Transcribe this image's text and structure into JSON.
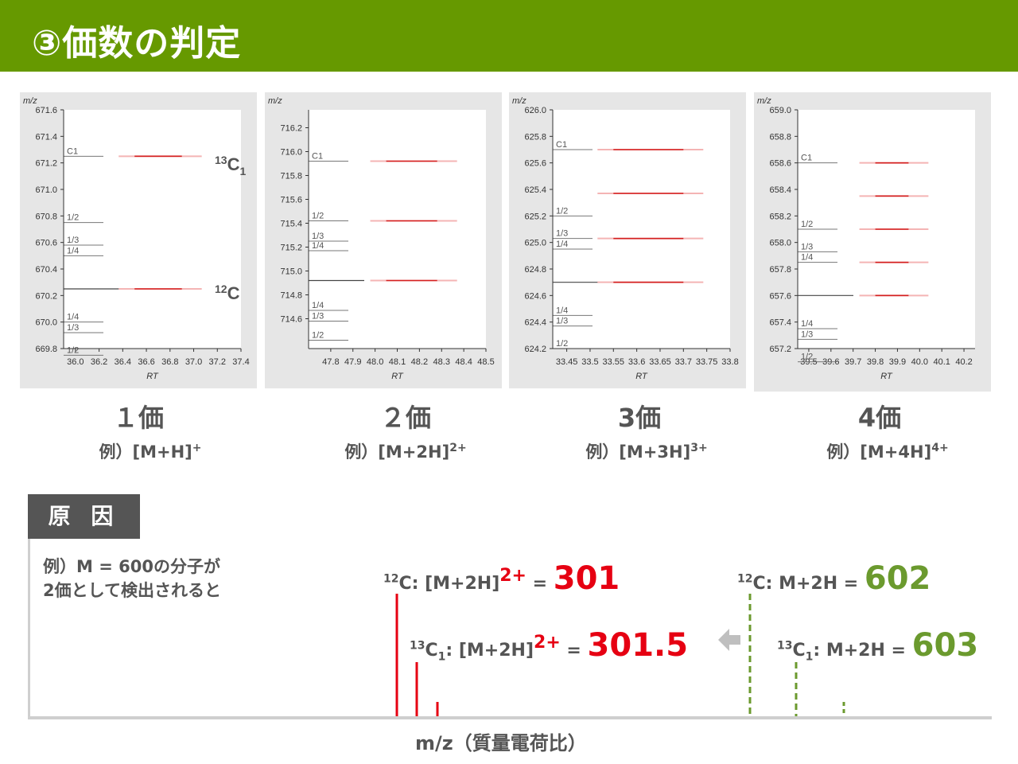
{
  "header": {
    "title": "③価数の判定"
  },
  "colors": {
    "header_bg": "#669900",
    "red": "#e60012",
    "green": "#6b9a2e",
    "gray": "#555555"
  },
  "chart_data": [
    {
      "type": "heatmap",
      "ylabel": "m/z",
      "xlabel": "RT",
      "yticks": [
        "671.6",
        "671.4",
        "671.2",
        "671.0",
        "670.8",
        "670.6",
        "670.4",
        "670.2",
        "670.0",
        "669.8"
      ],
      "xticks": [
        "36.0",
        "36.2",
        "36.4",
        "36.6",
        "36.8",
        "37.0",
        "37.2",
        "37.4"
      ],
      "ylim": [
        669.8,
        671.6
      ],
      "xlim": [
        35.9,
        37.4
      ],
      "markers": [
        {
          "label": "C1",
          "mz": 671.25
        },
        {
          "label": "1/2",
          "mz": 670.75
        },
        {
          "label": "1/3",
          "mz": 670.58
        },
        {
          "label": "1/4",
          "mz": 670.5
        },
        {
          "label": "1/4",
          "mz": 670.0
        },
        {
          "label": "1/3",
          "mz": 669.92
        },
        {
          "label": "1/2",
          "mz": 669.75
        }
      ],
      "mono_mz": 670.25,
      "peaks": [
        {
          "mz": 671.25,
          "rt_start": 36.5,
          "rt_end": 36.9
        },
        {
          "mz": 670.25,
          "rt_start": 36.5,
          "rt_end": 36.9
        }
      ],
      "annotations": {
        "c13": "13",
        "c13_sub": "1",
        "c12": "12",
        "elem": "C"
      },
      "charge_label": "１価",
      "example": "例）[M+H]",
      "example_sup": "+"
    },
    {
      "type": "heatmap",
      "ylabel": "m/z",
      "xlabel": "RT",
      "yticks": [
        "716.2",
        "716.0",
        "715.8",
        "715.6",
        "715.4",
        "715.2",
        "715.0",
        "714.8",
        "714.6"
      ],
      "xticks": [
        "47.8",
        "47.9",
        "48.0",
        "48.1",
        "48.2",
        "48.3",
        "48.4",
        "48.5"
      ],
      "ylim": [
        714.35,
        716.35
      ],
      "xlim": [
        47.7,
        48.5
      ],
      "markers": [
        {
          "label": "C1",
          "mz": 715.92
        },
        {
          "label": "1/2",
          "mz": 715.42
        },
        {
          "label": "1/3",
          "mz": 715.25
        },
        {
          "label": "1/4",
          "mz": 715.17
        },
        {
          "label": "1/4",
          "mz": 714.67
        },
        {
          "label": "1/3",
          "mz": 714.58
        },
        {
          "label": "1/2",
          "mz": 714.42
        }
      ],
      "mono_mz": 714.92,
      "peaks": [
        {
          "mz": 715.92,
          "rt_start": 48.05,
          "rt_end": 48.28
        },
        {
          "mz": 715.42,
          "rt_start": 48.05,
          "rt_end": 48.28
        },
        {
          "mz": 714.92,
          "rt_start": 48.05,
          "rt_end": 48.28
        }
      ],
      "charge_label": "２価",
      "example": "例）[M+2H]",
      "example_sup": "2+"
    },
    {
      "type": "heatmap",
      "ylabel": "m/z",
      "xlabel": "RT",
      "yticks": [
        "626.0",
        "625.8",
        "625.6",
        "625.4",
        "625.2",
        "625.0",
        "624.8",
        "624.6",
        "624.4",
        "624.2"
      ],
      "xticks": [
        "33.45",
        "33.5",
        "33.55",
        "33.6",
        "33.65",
        "33.7",
        "33.75",
        "33.8"
      ],
      "ylim": [
        624.2,
        626.0
      ],
      "xlim": [
        33.42,
        33.8
      ],
      "markers": [
        {
          "label": "C1",
          "mz": 625.7
        },
        {
          "label": "1/2",
          "mz": 625.2
        },
        {
          "label": "1/3",
          "mz": 625.03
        },
        {
          "label": "1/4",
          "mz": 624.95
        },
        {
          "label": "1/4",
          "mz": 624.45
        },
        {
          "label": "1/3",
          "mz": 624.37
        },
        {
          "label": "1/2",
          "mz": 624.2
        }
      ],
      "mono_mz": 624.7,
      "peaks": [
        {
          "mz": 625.7,
          "rt_start": 33.55,
          "rt_end": 33.7
        },
        {
          "mz": 625.37,
          "rt_start": 33.55,
          "rt_end": 33.7
        },
        {
          "mz": 625.03,
          "rt_start": 33.55,
          "rt_end": 33.7
        },
        {
          "mz": 624.7,
          "rt_start": 33.55,
          "rt_end": 33.7
        }
      ],
      "charge_label": "3価",
      "example": "例）[M+3H]",
      "example_sup": "3+"
    },
    {
      "type": "heatmap",
      "ylabel": "m/z",
      "xlabel": "RT",
      "yticks": [
        "659.0",
        "658.8",
        "658.6",
        "658.4",
        "658.2",
        "658.0",
        "657.8",
        "657.6",
        "657.4",
        "657.2"
      ],
      "xticks": [
        "39.5",
        "39.6",
        "39.7",
        "39.8",
        "39.9",
        "40.0",
        "40.1",
        "40.2"
      ],
      "ylim": [
        657.2,
        659.0
      ],
      "xlim": [
        39.45,
        40.25
      ],
      "markers": [
        {
          "label": "C1",
          "mz": 658.6
        },
        {
          "label": "1/2",
          "mz": 658.1
        },
        {
          "label": "1/3",
          "mz": 657.93
        },
        {
          "label": "1/4",
          "mz": 657.85
        },
        {
          "label": "1/4",
          "mz": 657.35
        },
        {
          "label": "1/3",
          "mz": 657.27
        },
        {
          "label": "1/2",
          "mz": 657.1
        }
      ],
      "mono_mz": 657.6,
      "peaks": [
        {
          "mz": 658.6,
          "rt_start": 39.8,
          "rt_end": 39.95
        },
        {
          "mz": 658.35,
          "rt_start": 39.8,
          "rt_end": 39.95
        },
        {
          "mz": 658.1,
          "rt_start": 39.8,
          "rt_end": 39.95
        },
        {
          "mz": 657.85,
          "rt_start": 39.8,
          "rt_end": 39.95
        },
        {
          "mz": 657.6,
          "rt_start": 39.8,
          "rt_end": 39.95
        }
      ],
      "charge_label": "4価",
      "example": "例）[M+4H]",
      "example_sup": "4+"
    }
  ],
  "cause": {
    "tab": "原 因",
    "line1": "例）M = 600の分子が",
    "line2": "2価として検出されると"
  },
  "spectrum": {
    "labels": {
      "c12_2h_pre": "12",
      "c12_2h_text": "C: [M+2H]",
      "c12_2h_charge": "2+",
      "c12_2h_eq": " = ",
      "c12_2h_value": "301",
      "c13_2h_pre": "13",
      "c13_2h_mid": "C",
      "c13_2h_sub": "1",
      "c13_2h_text": ": [M+2H]",
      "c13_2h_charge": "2+",
      "c13_2h_eq": " = ",
      "c13_2h_value": "301.5",
      "c12_1_pre": "12",
      "c12_1_text": "C: M+2H = ",
      "c12_1_value": "602",
      "c13_1_pre": "13",
      "c13_1_mid": "C",
      "c13_1_sub": "1",
      "c13_1_text": ": M+2H = ",
      "c13_1_value": "603"
    },
    "xlabel": "m/z（質量電荷比）"
  }
}
